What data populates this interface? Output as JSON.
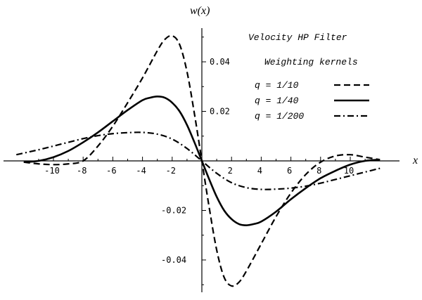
{
  "chart_data": {
    "type": "line",
    "title": "",
    "xlabel": "x",
    "ylabel": "w(x)",
    "xlim": [
      -12.6,
      12.4
    ],
    "ylim": [
      -0.0555,
      0.0555
    ],
    "x_ticks": [
      -10,
      -8,
      -6,
      -4,
      -2,
      2,
      4,
      6,
      8,
      10
    ],
    "x_tick_labels": [
      "-10",
      "-8",
      "-6",
      "-4",
      "-2",
      "2",
      "4",
      "6",
      "8",
      "10"
    ],
    "y_ticks": [
      -0.04,
      -0.02,
      0.02,
      0.04
    ],
    "y_tick_labels": [
      "-0.04",
      "-0.02",
      "0.02",
      "0.04"
    ],
    "grid": false,
    "annotations": [
      "Velocity HP Filter",
      "Weighting kernels"
    ],
    "legend_placement": "top-right",
    "series": [
      {
        "name": "q = 1/10",
        "dash": "dashed",
        "x": [
          -12,
          -11,
          -10,
          -9,
          -8,
          -7,
          -6,
          -5,
          -4,
          -3,
          -2.5,
          -2,
          -1.5,
          -1,
          -0.5,
          0,
          0.5,
          1,
          1.5,
          2,
          2.5,
          3,
          4,
          5,
          6,
          7,
          8,
          9,
          10,
          11,
          12
        ],
        "y": [
          -0.0005,
          -0.0012,
          -0.0015,
          -0.0012,
          0.0,
          0.006,
          0.014,
          0.0235,
          0.0335,
          0.0445,
          0.049,
          0.0505,
          0.047,
          0.036,
          0.019,
          0.0,
          -0.019,
          -0.036,
          -0.047,
          -0.0505,
          -0.049,
          -0.0445,
          -0.0335,
          -0.0225,
          -0.013,
          -0.0055,
          -0.0005,
          0.002,
          0.0025,
          0.0015,
          0.0005
        ]
      },
      {
        "name": "q = 1/40",
        "dash": "solid",
        "x": [
          -12,
          -11,
          -10,
          -9,
          -8,
          -7,
          -6,
          -5,
          -4,
          -3.5,
          -3,
          -2.5,
          -2,
          -1.5,
          -1,
          -0.5,
          0,
          0.5,
          1,
          1.5,
          2,
          2.5,
          3,
          3.5,
          4,
          5,
          6,
          7,
          8,
          9,
          10,
          11,
          12
        ],
        "y": [
          -0.0005,
          0.0,
          0.0015,
          0.004,
          0.0075,
          0.0115,
          0.016,
          0.0205,
          0.0245,
          0.0255,
          0.026,
          0.0255,
          0.0235,
          0.02,
          0.0145,
          0.0075,
          0.0,
          -0.0075,
          -0.0145,
          -0.02,
          -0.0235,
          -0.0255,
          -0.026,
          -0.0255,
          -0.0245,
          -0.0205,
          -0.0155,
          -0.011,
          -0.007,
          -0.004,
          -0.0015,
          0.0,
          0.0005
        ]
      },
      {
        "name": "q = 1/200",
        "dash": "dashdot",
        "x": [
          -12.5,
          -11,
          -10,
          -9,
          -8,
          -7,
          -6,
          -5,
          -4,
          -3,
          -2,
          -1,
          0,
          1,
          2,
          3,
          4,
          5,
          6,
          7,
          8,
          9,
          10,
          11,
          12
        ],
        "y": [
          0.0025,
          0.0045,
          0.006,
          0.0075,
          0.009,
          0.0102,
          0.011,
          0.0114,
          0.0115,
          0.0108,
          0.0088,
          0.005,
          0.0,
          -0.005,
          -0.0088,
          -0.0108,
          -0.0115,
          -0.0114,
          -0.011,
          -0.0102,
          -0.009,
          -0.0075,
          -0.006,
          -0.0045,
          -0.003
        ]
      }
    ]
  }
}
